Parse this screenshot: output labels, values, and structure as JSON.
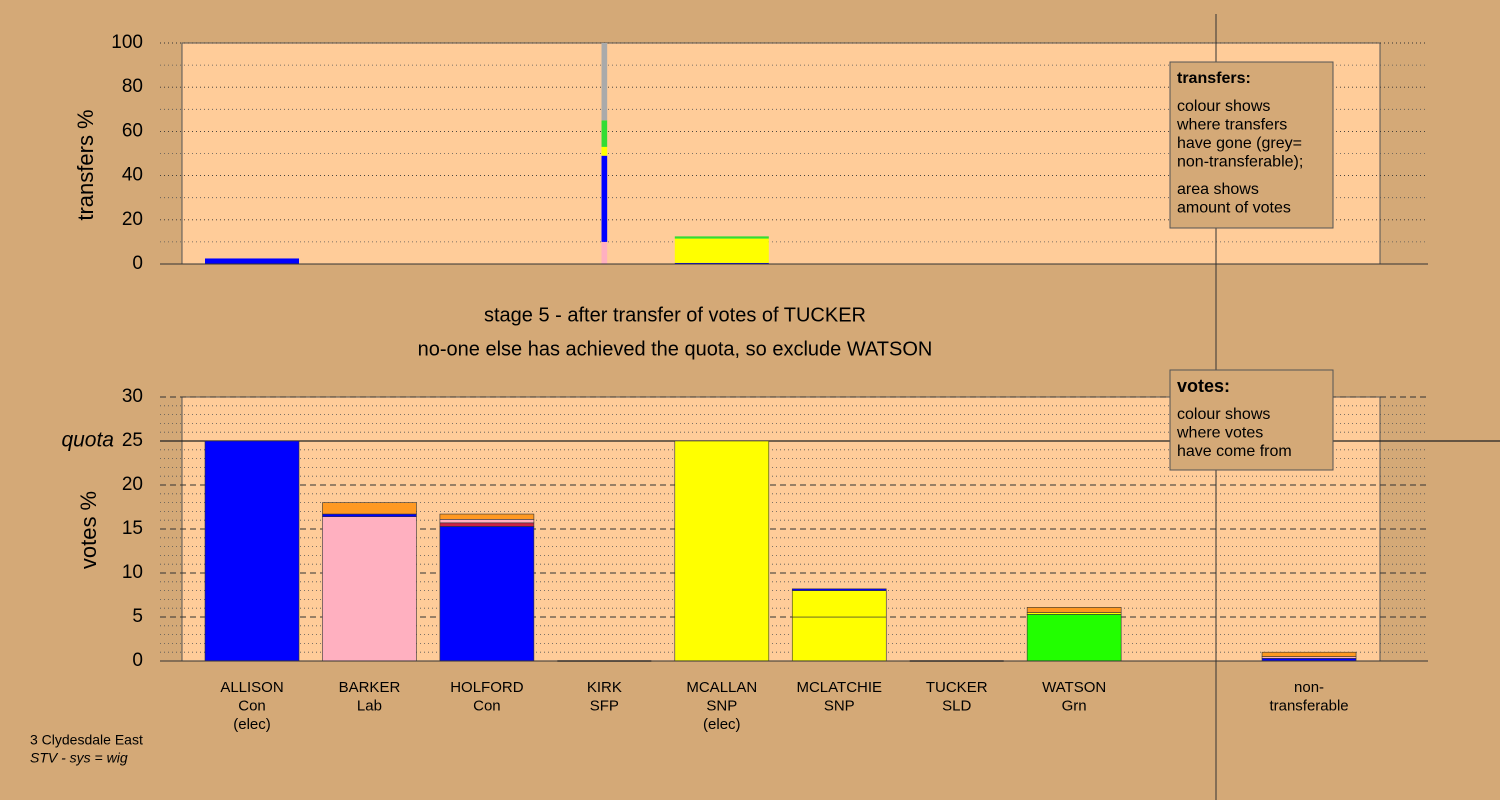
{
  "chart_data": [
    {
      "type": "stacked-bar",
      "y_label": "transfers %",
      "ylim": [
        0,
        100
      ],
      "yticks": [
        0,
        20,
        40,
        60,
        80,
        100
      ],
      "ygrid": [
        10,
        30,
        50,
        70,
        90
      ],
      "grid_style": "dotted",
      "legend_title": "transfers:",
      "legend_lines": [
        "colour shows",
        "where transfers",
        "have gone (grey=",
        "non-transferable);"
      ],
      "legend_lines2": [
        "area shows",
        "amount of votes"
      ],
      "bar_widths": [
        1,
        0,
        0,
        0.06,
        1,
        0,
        0,
        0,
        null,
        0
      ],
      "stacks": [
        [
          {
            "color": "#0000ff",
            "value": 2.5
          }
        ],
        [],
        [],
        [
          {
            "color": "#ffb0c0",
            "value": 10
          },
          {
            "color": "#0000ff",
            "value": 39
          },
          {
            "color": "#ffff00",
            "value": 4
          },
          {
            "color": "#33dd33",
            "value": 12
          },
          {
            "color": "#aaaaaa",
            "value": 35
          }
        ],
        [
          {
            "color": "#0000ff",
            "value": 0.5
          },
          {
            "color": "#ffff00",
            "value": 11
          },
          {
            "color": "#33dd33",
            "value": 1
          }
        ],
        [],
        [],
        [],
        [],
        []
      ]
    },
    {
      "type": "stacked-bar",
      "title": "stage 5 - after transfer of votes of TUCKER",
      "subtitle": "no-one else has achieved the quota, so exclude WATSON",
      "y_label": "votes %",
      "ylim": [
        0,
        30
      ],
      "yticks": [
        0,
        5,
        10,
        15,
        20,
        25,
        30
      ],
      "ygrid": [
        1,
        2,
        3,
        4,
        6,
        7,
        8,
        9,
        11,
        12,
        13,
        14,
        16,
        17,
        18,
        19,
        21,
        22,
        23,
        24,
        26,
        27,
        28,
        29
      ],
      "grid_style": "dashed",
      "quota": 25,
      "quota_label": "quota",
      "legend_title": "votes:",
      "legend_lines": [
        "colour shows",
        "where votes",
        "have come from"
      ],
      "categories": [
        [
          "ALLISON",
          "Con",
          "(elec)"
        ],
        [
          "BARKER",
          "Lab"
        ],
        [
          "HOLFORD",
          "Con"
        ],
        [
          "KIRK",
          "SFP"
        ],
        [
          "MCALLAN",
          "SNP",
          "(elec)"
        ],
        [
          "MCLATCHIE",
          "SNP"
        ],
        [
          "TUCKER",
          "SLD"
        ],
        [
          "WATSON",
          "Grn"
        ],
        null,
        [
          "non-",
          "transferable"
        ]
      ],
      "stacks": [
        [
          {
            "color": "#0000ff",
            "value": 25
          }
        ],
        [
          {
            "color": "#ffb0c0",
            "value": 16.4
          },
          {
            "color": "#0000ff",
            "value": 0.3
          },
          {
            "color": "#ff9922",
            "value": 1.3
          }
        ],
        [
          {
            "color": "#0000ff",
            "value": 15.3
          },
          {
            "color": "#cc2244",
            "value": 0.4
          },
          {
            "color": "#ffb0c0",
            "value": 0.4
          },
          {
            "color": "#ff9922",
            "value": 0.6
          }
        ],
        [],
        [
          {
            "color": "#ffff00",
            "value": 25
          }
        ],
        [
          {
            "color": "#ffff00",
            "value": 5
          },
          {
            "color": "#ffff00",
            "value": 3
          },
          {
            "color": "#0000ff",
            "value": 0.2
          }
        ],
        [],
        [
          {
            "color": "#22ff00",
            "value": 5.3
          },
          {
            "color": "#ffff00",
            "value": 0.2
          },
          {
            "color": "#ff9922",
            "value": 0.6
          }
        ],
        [],
        [
          {
            "color": "#0000ff",
            "value": 0.3
          },
          {
            "color": "#ffb0c0",
            "value": 0.2
          },
          {
            "color": "#ff9922",
            "value": 0.5
          }
        ]
      ],
      "footer": [
        "3 Clydesdale East",
        "STV - sys = wig"
      ]
    }
  ]
}
